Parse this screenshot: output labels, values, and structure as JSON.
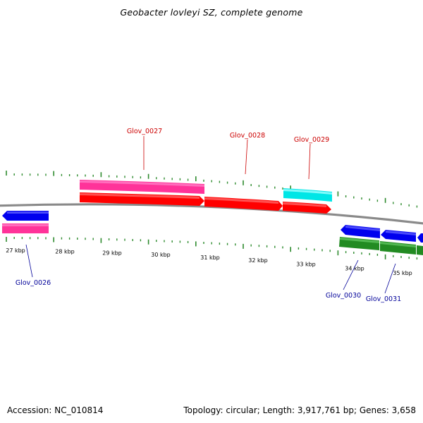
{
  "title": "Geobacter lovleyi SZ, complete genome",
  "footer": {
    "accession": "Accession: NC_010814",
    "summary": "Topology: circular; Length: 3,917,761 bp; Genes: 3,658"
  },
  "colors": {
    "forward_cds": "#ff0000",
    "forward_gene": "#ff3399",
    "reverse_cds": "#0000ee",
    "reverse_gene": "#ff3399",
    "trna_like": "#00e6e6",
    "reverse_green": "#228b22",
    "tick": "#2e8b2e",
    "backbone": "#888888",
    "forward_label": "#cc0000",
    "reverse_label": "#000099"
  },
  "scale": {
    "tick_labels": [
      "27 kbp",
      "28 kbp",
      "29 kbp",
      "30 kbp",
      "31 kbp",
      "32 kbp",
      "33 kbp",
      "34 kbp",
      "35 kbp"
    ]
  },
  "genes": [
    {
      "id": "Glov_0026",
      "strand": "reverse"
    },
    {
      "id": "Glov_0027",
      "strand": "forward"
    },
    {
      "id": "Glov_0028",
      "strand": "forward"
    },
    {
      "id": "Glov_0029",
      "strand": "forward"
    },
    {
      "id": "Glov_0030",
      "strand": "reverse"
    },
    {
      "id": "Glov_0031",
      "strand": "reverse"
    }
  ]
}
